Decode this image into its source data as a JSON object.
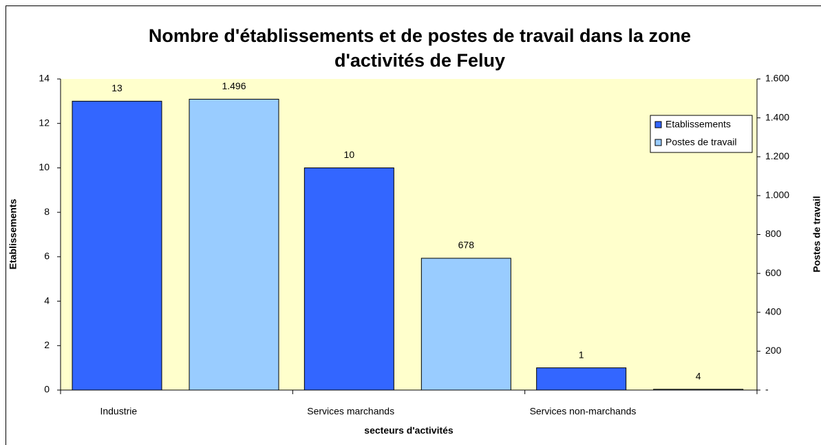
{
  "chart_data": {
    "type": "bar",
    "title": "Nombre d'établissements et de postes de travail dans la zone d'activités de Feluy",
    "x_label": "secteurs d'activités",
    "y_label": "Etablissements",
    "y2_label": "Postes de travail",
    "categories": [
      "Industrie",
      "Services marchands",
      "Services non-marchands"
    ],
    "series": [
      {
        "name": "Etablissements",
        "color": "#3366ff",
        "values": [
          13,
          10,
          1
        ]
      },
      {
        "name": "Postes de travail",
        "color": "#99ccff",
        "axis": "y2",
        "values": [
          1496,
          678,
          4
        ],
        "value_labels": [
          "1.496",
          "678",
          "4"
        ]
      }
    ],
    "ylim": [
      0,
      14
    ],
    "yticks": [
      0,
      2,
      4,
      6,
      8,
      10,
      12,
      14
    ],
    "y2lim": [
      0,
      1600
    ],
    "y2ticks": [
      {
        "value": 0,
        "label": "-"
      },
      200,
      400,
      600,
      800,
      {
        "value": 1000,
        "label": "1.000"
      },
      {
        "value": 1200,
        "label": "1.200"
      },
      {
        "value": 1400,
        "label": "1.400"
      },
      {
        "value": 1600,
        "label": "1.600"
      }
    ],
    "legend": "top-right",
    "background": "#ffffcc"
  }
}
